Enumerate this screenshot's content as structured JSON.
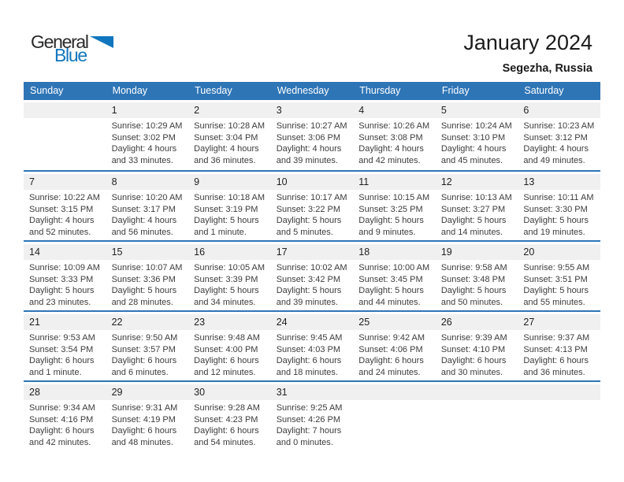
{
  "logo": {
    "line1": "General",
    "line2": "Blue"
  },
  "title": "January 2024",
  "location": "Segezha, Russia",
  "colors": {
    "header_blue": "#2E75B6",
    "logo_blue": "#1076BE",
    "daynum_bg": "#F0F0F0"
  },
  "weekdays": [
    "Sunday",
    "Monday",
    "Tuesday",
    "Wednesday",
    "Thursday",
    "Friday",
    "Saturday"
  ],
  "weeks": [
    [
      null,
      {
        "date": "1",
        "sunrise": "Sunrise: 10:29 AM",
        "sunset": "Sunset: 3:02 PM",
        "daylight1": "Daylight: 4 hours",
        "daylight2": "and 33 minutes."
      },
      {
        "date": "2",
        "sunrise": "Sunrise: 10:28 AM",
        "sunset": "Sunset: 3:04 PM",
        "daylight1": "Daylight: 4 hours",
        "daylight2": "and 36 minutes."
      },
      {
        "date": "3",
        "sunrise": "Sunrise: 10:27 AM",
        "sunset": "Sunset: 3:06 PM",
        "daylight1": "Daylight: 4 hours",
        "daylight2": "and 39 minutes."
      },
      {
        "date": "4",
        "sunrise": "Sunrise: 10:26 AM",
        "sunset": "Sunset: 3:08 PM",
        "daylight1": "Daylight: 4 hours",
        "daylight2": "and 42 minutes."
      },
      {
        "date": "5",
        "sunrise": "Sunrise: 10:24 AM",
        "sunset": "Sunset: 3:10 PM",
        "daylight1": "Daylight: 4 hours",
        "daylight2": "and 45 minutes."
      },
      {
        "date": "6",
        "sunrise": "Sunrise: 10:23 AM",
        "sunset": "Sunset: 3:12 PM",
        "daylight1": "Daylight: 4 hours",
        "daylight2": "and 49 minutes."
      }
    ],
    [
      {
        "date": "7",
        "sunrise": "Sunrise: 10:22 AM",
        "sunset": "Sunset: 3:15 PM",
        "daylight1": "Daylight: 4 hours",
        "daylight2": "and 52 minutes."
      },
      {
        "date": "8",
        "sunrise": "Sunrise: 10:20 AM",
        "sunset": "Sunset: 3:17 PM",
        "daylight1": "Daylight: 4 hours",
        "daylight2": "and 56 minutes."
      },
      {
        "date": "9",
        "sunrise": "Sunrise: 10:18 AM",
        "sunset": "Sunset: 3:19 PM",
        "daylight1": "Daylight: 5 hours",
        "daylight2": "and 1 minute."
      },
      {
        "date": "10",
        "sunrise": "Sunrise: 10:17 AM",
        "sunset": "Sunset: 3:22 PM",
        "daylight1": "Daylight: 5 hours",
        "daylight2": "and 5 minutes."
      },
      {
        "date": "11",
        "sunrise": "Sunrise: 10:15 AM",
        "sunset": "Sunset: 3:25 PM",
        "daylight1": "Daylight: 5 hours",
        "daylight2": "and 9 minutes."
      },
      {
        "date": "12",
        "sunrise": "Sunrise: 10:13 AM",
        "sunset": "Sunset: 3:27 PM",
        "daylight1": "Daylight: 5 hours",
        "daylight2": "and 14 minutes."
      },
      {
        "date": "13",
        "sunrise": "Sunrise: 10:11 AM",
        "sunset": "Sunset: 3:30 PM",
        "daylight1": "Daylight: 5 hours",
        "daylight2": "and 19 minutes."
      }
    ],
    [
      {
        "date": "14",
        "sunrise": "Sunrise: 10:09 AM",
        "sunset": "Sunset: 3:33 PM",
        "daylight1": "Daylight: 5 hours",
        "daylight2": "and 23 minutes."
      },
      {
        "date": "15",
        "sunrise": "Sunrise: 10:07 AM",
        "sunset": "Sunset: 3:36 PM",
        "daylight1": "Daylight: 5 hours",
        "daylight2": "and 28 minutes."
      },
      {
        "date": "16",
        "sunrise": "Sunrise: 10:05 AM",
        "sunset": "Sunset: 3:39 PM",
        "daylight1": "Daylight: 5 hours",
        "daylight2": "and 34 minutes."
      },
      {
        "date": "17",
        "sunrise": "Sunrise: 10:02 AM",
        "sunset": "Sunset: 3:42 PM",
        "daylight1": "Daylight: 5 hours",
        "daylight2": "and 39 minutes."
      },
      {
        "date": "18",
        "sunrise": "Sunrise: 10:00 AM",
        "sunset": "Sunset: 3:45 PM",
        "daylight1": "Daylight: 5 hours",
        "daylight2": "and 44 minutes."
      },
      {
        "date": "19",
        "sunrise": "Sunrise: 9:58 AM",
        "sunset": "Sunset: 3:48 PM",
        "daylight1": "Daylight: 5 hours",
        "daylight2": "and 50 minutes."
      },
      {
        "date": "20",
        "sunrise": "Sunrise: 9:55 AM",
        "sunset": "Sunset: 3:51 PM",
        "daylight1": "Daylight: 5 hours",
        "daylight2": "and 55 minutes."
      }
    ],
    [
      {
        "date": "21",
        "sunrise": "Sunrise: 9:53 AM",
        "sunset": "Sunset: 3:54 PM",
        "daylight1": "Daylight: 6 hours",
        "daylight2": "and 1 minute."
      },
      {
        "date": "22",
        "sunrise": "Sunrise: 9:50 AM",
        "sunset": "Sunset: 3:57 PM",
        "daylight1": "Daylight: 6 hours",
        "daylight2": "and 6 minutes."
      },
      {
        "date": "23",
        "sunrise": "Sunrise: 9:48 AM",
        "sunset": "Sunset: 4:00 PM",
        "daylight1": "Daylight: 6 hours",
        "daylight2": "and 12 minutes."
      },
      {
        "date": "24",
        "sunrise": "Sunrise: 9:45 AM",
        "sunset": "Sunset: 4:03 PM",
        "daylight1": "Daylight: 6 hours",
        "daylight2": "and 18 minutes."
      },
      {
        "date": "25",
        "sunrise": "Sunrise: 9:42 AM",
        "sunset": "Sunset: 4:06 PM",
        "daylight1": "Daylight: 6 hours",
        "daylight2": "and 24 minutes."
      },
      {
        "date": "26",
        "sunrise": "Sunrise: 9:39 AM",
        "sunset": "Sunset: 4:10 PM",
        "daylight1": "Daylight: 6 hours",
        "daylight2": "and 30 minutes."
      },
      {
        "date": "27",
        "sunrise": "Sunrise: 9:37 AM",
        "sunset": "Sunset: 4:13 PM",
        "daylight1": "Daylight: 6 hours",
        "daylight2": "and 36 minutes."
      }
    ],
    [
      {
        "date": "28",
        "sunrise": "Sunrise: 9:34 AM",
        "sunset": "Sunset: 4:16 PM",
        "daylight1": "Daylight: 6 hours",
        "daylight2": "and 42 minutes."
      },
      {
        "date": "29",
        "sunrise": "Sunrise: 9:31 AM",
        "sunset": "Sunset: 4:19 PM",
        "daylight1": "Daylight: 6 hours",
        "daylight2": "and 48 minutes."
      },
      {
        "date": "30",
        "sunrise": "Sunrise: 9:28 AM",
        "sunset": "Sunset: 4:23 PM",
        "daylight1": "Daylight: 6 hours",
        "daylight2": "and 54 minutes."
      },
      {
        "date": "31",
        "sunrise": "Sunrise: 9:25 AM",
        "sunset": "Sunset: 4:26 PM",
        "daylight1": "Daylight: 7 hours",
        "daylight2": "and 0 minutes."
      },
      null,
      null,
      null
    ]
  ]
}
